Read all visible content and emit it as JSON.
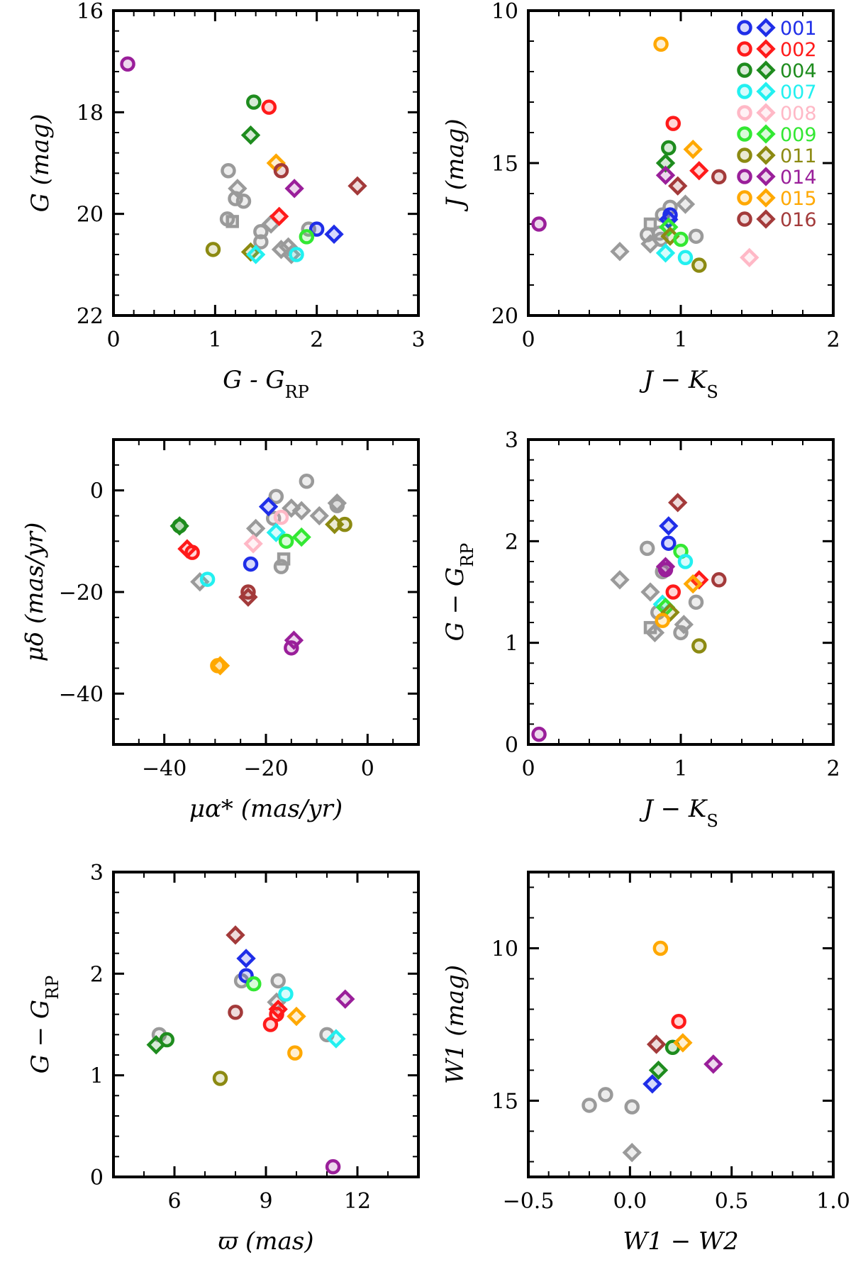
{
  "groups": [
    {
      "id": "001",
      "color": "#1f2ee8"
    },
    {
      "id": "002",
      "color": "#ff1a1a"
    },
    {
      "id": "004",
      "color": "#1e8c1e"
    },
    {
      "id": "007",
      "color": "#22f0f0"
    },
    {
      "id": "008",
      "color": "#ffb8c6"
    },
    {
      "id": "009",
      "color": "#33e833"
    },
    {
      "id": "011",
      "color": "#8c8a12"
    },
    {
      "id": "014",
      "color": "#9a1f9a"
    },
    {
      "id": "015",
      "color": "#ffa800"
    },
    {
      "id": "016",
      "color": "#a33a3a"
    }
  ],
  "field_color": "#9a9a9a",
  "legend": {
    "placement": "top-right",
    "labels": [
      "001",
      "002",
      "004",
      "007",
      "008",
      "009",
      "011",
      "014",
      "015",
      "016"
    ]
  },
  "chart_data": [
    {
      "type": "scatter",
      "xlabel": "G - G_RP",
      "ylabel": "G (mag)",
      "xlim": [
        0,
        3
      ],
      "ylim": [
        22,
        16
      ],
      "y_inverted": true,
      "xticks": [
        "0",
        "1",
        "2",
        "3"
      ],
      "yticks": [
        "16",
        "18",
        "20",
        "22"
      ],
      "points": [
        {
          "x": 0.14,
          "y": 17.05,
          "g": "014",
          "m": "o"
        },
        {
          "x": 1.38,
          "y": 17.8,
          "g": "004",
          "m": "o"
        },
        {
          "x": 1.53,
          "y": 17.9,
          "g": "002",
          "m": "o"
        },
        {
          "x": 1.35,
          "y": 18.45,
          "g": "004",
          "m": "d"
        },
        {
          "x": 1.6,
          "y": 19.0,
          "g": "015",
          "m": "d"
        },
        {
          "x": 1.65,
          "y": 19.15,
          "g": "016",
          "m": "o"
        },
        {
          "x": 1.78,
          "y": 19.5,
          "g": "014",
          "m": "d"
        },
        {
          "x": 2.4,
          "y": 19.45,
          "g": "016",
          "m": "d"
        },
        {
          "x": 1.63,
          "y": 20.05,
          "g": "002",
          "m": "d"
        },
        {
          "x": 2.0,
          "y": 20.3,
          "g": "001",
          "m": "o"
        },
        {
          "x": 2.17,
          "y": 20.4,
          "g": "001",
          "m": "d"
        },
        {
          "x": 1.9,
          "y": 20.45,
          "g": "009",
          "m": "o"
        },
        {
          "x": 0.98,
          "y": 20.7,
          "g": "011",
          "m": "o"
        },
        {
          "x": 1.35,
          "y": 20.75,
          "g": "011",
          "m": "d"
        },
        {
          "x": 1.4,
          "y": 20.8,
          "g": "007",
          "m": "d"
        },
        {
          "x": 1.8,
          "y": 20.8,
          "g": "007",
          "m": "o"
        },
        {
          "x": 1.13,
          "y": 19.15,
          "g": "field",
          "m": "o"
        },
        {
          "x": 1.22,
          "y": 19.5,
          "g": "field",
          "m": "d"
        },
        {
          "x": 1.2,
          "y": 19.7,
          "g": "field",
          "m": "o"
        },
        {
          "x": 1.28,
          "y": 19.75,
          "g": "field",
          "m": "o"
        },
        {
          "x": 1.12,
          "y": 20.1,
          "g": "field",
          "m": "o"
        },
        {
          "x": 1.17,
          "y": 20.15,
          "g": "field",
          "m": "s"
        },
        {
          "x": 1.45,
          "y": 20.35,
          "g": "field",
          "m": "o"
        },
        {
          "x": 1.55,
          "y": 20.2,
          "g": "field",
          "m": "d"
        },
        {
          "x": 1.45,
          "y": 20.55,
          "g": "field",
          "m": "o"
        },
        {
          "x": 1.65,
          "y": 20.7,
          "g": "field",
          "m": "d"
        },
        {
          "x": 1.72,
          "y": 20.65,
          "g": "field",
          "m": "d"
        },
        {
          "x": 1.75,
          "y": 20.8,
          "g": "field",
          "m": "d"
        },
        {
          "x": 1.92,
          "y": 20.3,
          "g": "field",
          "m": "o"
        }
      ]
    },
    {
      "type": "scatter",
      "xlabel": "J − K_S",
      "ylabel": "J (mag)",
      "xlim": [
        0,
        2
      ],
      "ylim": [
        20,
        10
      ],
      "y_inverted": true,
      "xticks": [
        "0",
        "1",
        "2"
      ],
      "yticks": [
        "10",
        "15",
        "20"
      ],
      "points": [
        {
          "x": 0.87,
          "y": 11.1,
          "g": "015",
          "m": "o"
        },
        {
          "x": 0.95,
          "y": 13.7,
          "g": "002",
          "m": "o"
        },
        {
          "x": 0.92,
          "y": 14.5,
          "g": "004",
          "m": "o"
        },
        {
          "x": 1.08,
          "y": 14.55,
          "g": "015",
          "m": "d"
        },
        {
          "x": 0.9,
          "y": 15.0,
          "g": "004",
          "m": "d"
        },
        {
          "x": 1.12,
          "y": 15.25,
          "g": "002",
          "m": "d"
        },
        {
          "x": 1.25,
          "y": 15.45,
          "g": "016",
          "m": "o"
        },
        {
          "x": 0.9,
          "y": 15.4,
          "g": "014",
          "m": "d"
        },
        {
          "x": 0.98,
          "y": 15.75,
          "g": "016",
          "m": "d"
        },
        {
          "x": 0.93,
          "y": 16.7,
          "g": "001",
          "m": "o"
        },
        {
          "x": 0.92,
          "y": 16.85,
          "g": "001",
          "m": "d"
        },
        {
          "x": 0.92,
          "y": 17.1,
          "g": "009",
          "m": "d"
        },
        {
          "x": 0.93,
          "y": 17.4,
          "g": "011",
          "m": "d"
        },
        {
          "x": 1.0,
          "y": 17.5,
          "g": "009",
          "m": "o"
        },
        {
          "x": 0.9,
          "y": 17.95,
          "g": "007",
          "m": "d"
        },
        {
          "x": 1.03,
          "y": 18.1,
          "g": "007",
          "m": "o"
        },
        {
          "x": 1.12,
          "y": 18.35,
          "g": "011",
          "m": "o"
        },
        {
          "x": 1.45,
          "y": 18.1,
          "g": "008",
          "m": "d"
        },
        {
          "x": 0.07,
          "y": 17.0,
          "g": "014",
          "m": "o"
        },
        {
          "x": 0.93,
          "y": 16.45,
          "g": "field",
          "m": "o"
        },
        {
          "x": 1.03,
          "y": 16.35,
          "g": "field",
          "m": "d"
        },
        {
          "x": 0.88,
          "y": 16.7,
          "g": "field",
          "m": "o"
        },
        {
          "x": 0.8,
          "y": 17.0,
          "g": "field",
          "m": "s"
        },
        {
          "x": 0.78,
          "y": 17.35,
          "g": "field",
          "m": "o"
        },
        {
          "x": 0.86,
          "y": 17.3,
          "g": "field",
          "m": "o"
        },
        {
          "x": 0.8,
          "y": 17.65,
          "g": "field",
          "m": "d"
        },
        {
          "x": 0.87,
          "y": 17.5,
          "g": "field",
          "m": "o"
        },
        {
          "x": 1.1,
          "y": 17.4,
          "g": "field",
          "m": "o"
        },
        {
          "x": 0.6,
          "y": 17.9,
          "g": "field",
          "m": "d"
        }
      ]
    },
    {
      "type": "scatter",
      "xlabel": "μα* (mas/yr)",
      "ylabel": "μδ (mas/yr)",
      "xlim": [
        -50,
        10
      ],
      "ylim": [
        -50,
        10
      ],
      "xticks": [
        "−40",
        "−20",
        "0"
      ],
      "yticks": [
        "−40",
        "−20",
        "0"
      ],
      "points": [
        {
          "x": -37,
          "y": -7,
          "g": "004",
          "m": "o"
        },
        {
          "x": -37,
          "y": -7,
          "g": "004",
          "m": "d"
        },
        {
          "x": -35.5,
          "y": -11.5,
          "g": "002",
          "m": "d"
        },
        {
          "x": -34.5,
          "y": -12.2,
          "g": "002",
          "m": "o"
        },
        {
          "x": -31.5,
          "y": -17.5,
          "g": "007",
          "m": "o"
        },
        {
          "x": -23.5,
          "y": -20,
          "g": "016",
          "m": "o"
        },
        {
          "x": -23.5,
          "y": -21,
          "g": "016",
          "m": "d"
        },
        {
          "x": -29.5,
          "y": -34.5,
          "g": "015",
          "m": "o"
        },
        {
          "x": -29,
          "y": -34.5,
          "g": "015",
          "m": "d"
        },
        {
          "x": -15,
          "y": -31,
          "g": "014",
          "m": "o"
        },
        {
          "x": -14.5,
          "y": -29.5,
          "g": "014",
          "m": "d"
        },
        {
          "x": -19.5,
          "y": -3.2,
          "g": "001",
          "m": "d"
        },
        {
          "x": -23,
          "y": -14.5,
          "g": "001",
          "m": "o"
        },
        {
          "x": -18,
          "y": -8.3,
          "g": "007",
          "m": "d"
        },
        {
          "x": -22.5,
          "y": -10.5,
          "g": "008",
          "m": "d"
        },
        {
          "x": -17,
          "y": -5.3,
          "g": "008",
          "m": "o"
        },
        {
          "x": -16,
          "y": -10,
          "g": "009",
          "m": "o"
        },
        {
          "x": -13,
          "y": -9.2,
          "g": "009",
          "m": "d"
        },
        {
          "x": -6.5,
          "y": -6.7,
          "g": "011",
          "m": "d"
        },
        {
          "x": -4.5,
          "y": -6.7,
          "g": "011",
          "m": "o"
        },
        {
          "x": -33,
          "y": -18,
          "g": "field",
          "m": "d"
        },
        {
          "x": -18.5,
          "y": -5.5,
          "g": "field",
          "m": "o"
        },
        {
          "x": -18,
          "y": -1.2,
          "g": "field",
          "m": "o"
        },
        {
          "x": -22,
          "y": -7.5,
          "g": "field",
          "m": "d"
        },
        {
          "x": -15,
          "y": -3.5,
          "g": "field",
          "m": "d"
        },
        {
          "x": -13,
          "y": -4,
          "g": "field",
          "m": "d"
        },
        {
          "x": -12,
          "y": 1.8,
          "g": "field",
          "m": "o"
        },
        {
          "x": -9.5,
          "y": -5,
          "g": "field",
          "m": "d"
        },
        {
          "x": -6,
          "y": -2.5,
          "g": "field",
          "m": "d"
        },
        {
          "x": -6,
          "y": -3,
          "g": "field",
          "m": "o"
        },
        {
          "x": -17,
          "y": -15,
          "g": "field",
          "m": "o"
        },
        {
          "x": -16.5,
          "y": -13.5,
          "g": "field",
          "m": "s"
        }
      ]
    },
    {
      "type": "scatter",
      "xlabel": "J − K_S",
      "ylabel": "G − G_RP",
      "xlim": [
        0,
        2
      ],
      "ylim": [
        0,
        3
      ],
      "xticks": [
        "0",
        "1",
        "2"
      ],
      "yticks": [
        "0",
        "1",
        "2",
        "3"
      ],
      "points": [
        {
          "x": 0.07,
          "y": 0.1,
          "g": "014",
          "m": "o"
        },
        {
          "x": 0.98,
          "y": 2.38,
          "g": "016",
          "m": "d"
        },
        {
          "x": 0.92,
          "y": 2.15,
          "g": "001",
          "m": "d"
        },
        {
          "x": 0.92,
          "y": 1.98,
          "g": "001",
          "m": "o"
        },
        {
          "x": 1.0,
          "y": 1.9,
          "g": "009",
          "m": "o"
        },
        {
          "x": 1.03,
          "y": 1.8,
          "g": "007",
          "m": "o"
        },
        {
          "x": 0.9,
          "y": 1.75,
          "g": "014",
          "m": "d"
        },
        {
          "x": 0.9,
          "y": 1.72,
          "g": "014",
          "m": "o"
        },
        {
          "x": 1.12,
          "y": 1.62,
          "g": "002",
          "m": "d"
        },
        {
          "x": 1.08,
          "y": 1.58,
          "g": "015",
          "m": "d"
        },
        {
          "x": 1.25,
          "y": 1.62,
          "g": "016",
          "m": "o"
        },
        {
          "x": 0.95,
          "y": 1.5,
          "g": "002",
          "m": "o"
        },
        {
          "x": 0.88,
          "y": 1.38,
          "g": "007",
          "m": "d"
        },
        {
          "x": 0.9,
          "y": 1.35,
          "g": "009",
          "m": "d"
        },
        {
          "x": 0.93,
          "y": 1.3,
          "g": "011",
          "m": "d"
        },
        {
          "x": 0.88,
          "y": 1.22,
          "g": "015",
          "m": "o"
        },
        {
          "x": 1.12,
          "y": 0.97,
          "g": "011",
          "m": "o"
        },
        {
          "x": 0.78,
          "y": 1.93,
          "g": "field",
          "m": "o"
        },
        {
          "x": 0.6,
          "y": 1.62,
          "g": "field",
          "m": "d"
        },
        {
          "x": 0.8,
          "y": 1.5,
          "g": "field",
          "m": "d"
        },
        {
          "x": 0.88,
          "y": 1.7,
          "g": "field",
          "m": "o"
        },
        {
          "x": 1.1,
          "y": 1.4,
          "g": "field",
          "m": "o"
        },
        {
          "x": 0.85,
          "y": 1.3,
          "g": "field",
          "m": "o"
        },
        {
          "x": 1.02,
          "y": 1.18,
          "g": "field",
          "m": "d"
        },
        {
          "x": 1.0,
          "y": 1.1,
          "g": "field",
          "m": "o"
        },
        {
          "x": 0.8,
          "y": 1.15,
          "g": "field",
          "m": "s"
        },
        {
          "x": 0.83,
          "y": 1.1,
          "g": "field",
          "m": "d"
        }
      ]
    },
    {
      "type": "scatter",
      "xlabel": "ϖ (mas)",
      "ylabel": "G − G_RP",
      "xlim": [
        4,
        14
      ],
      "ylim": [
        0,
        3
      ],
      "xticks": [
        "6",
        "9",
        "12"
      ],
      "yticks": [
        "0",
        "1",
        "2",
        "3"
      ],
      "points": [
        {
          "x": 8.0,
          "y": 2.38,
          "g": "016",
          "m": "d"
        },
        {
          "x": 8.35,
          "y": 2.15,
          "g": "001",
          "m": "d"
        },
        {
          "x": 8.35,
          "y": 1.98,
          "g": "001",
          "m": "o"
        },
        {
          "x": 8.6,
          "y": 1.9,
          "g": "009",
          "m": "o"
        },
        {
          "x": 9.65,
          "y": 1.8,
          "g": "007",
          "m": "o"
        },
        {
          "x": 11.6,
          "y": 1.75,
          "g": "014",
          "m": "d"
        },
        {
          "x": 9.4,
          "y": 1.65,
          "g": "002",
          "m": "d"
        },
        {
          "x": 9.35,
          "y": 1.6,
          "g": "002",
          "m": "o"
        },
        {
          "x": 10.0,
          "y": 1.58,
          "g": "015",
          "m": "d"
        },
        {
          "x": 9.15,
          "y": 1.5,
          "g": "002",
          "m": "o"
        },
        {
          "x": 8.0,
          "y": 1.62,
          "g": "016",
          "m": "o"
        },
        {
          "x": 11.3,
          "y": 1.36,
          "g": "007",
          "m": "d"
        },
        {
          "x": 9.95,
          "y": 1.22,
          "g": "015",
          "m": "o"
        },
        {
          "x": 7.5,
          "y": 0.97,
          "g": "011",
          "m": "o"
        },
        {
          "x": 11.2,
          "y": 0.1,
          "g": "014",
          "m": "o"
        },
        {
          "x": 5.4,
          "y": 1.3,
          "g": "004",
          "m": "d"
        },
        {
          "x": 5.75,
          "y": 1.35,
          "g": "004",
          "m": "o"
        },
        {
          "x": 5.5,
          "y": 1.4,
          "g": "field",
          "m": "o"
        },
        {
          "x": 8.2,
          "y": 1.93,
          "g": "field",
          "m": "o"
        },
        {
          "x": 9.4,
          "y": 1.93,
          "g": "field",
          "m": "o"
        },
        {
          "x": 9.35,
          "y": 1.72,
          "g": "field",
          "m": "d"
        },
        {
          "x": 11.0,
          "y": 1.4,
          "g": "field",
          "m": "o"
        }
      ]
    },
    {
      "type": "scatter",
      "xlabel": "W1 − W2",
      "ylabel": "W1 (mag)",
      "xlim": [
        -0.5,
        1.0
      ],
      "ylim": [
        17.5,
        7.5
      ],
      "y_inverted": true,
      "xticks": [
        "−0.5",
        "0.0",
        "0.5",
        "1.0"
      ],
      "yticks": [
        "10",
        "15"
      ],
      "points": [
        {
          "x": 0.15,
          "y": 10.0,
          "g": "015",
          "m": "o"
        },
        {
          "x": 0.24,
          "y": 12.4,
          "g": "002",
          "m": "o"
        },
        {
          "x": 0.21,
          "y": 13.25,
          "g": "004",
          "m": "o"
        },
        {
          "x": 0.26,
          "y": 13.1,
          "g": "015",
          "m": "d"
        },
        {
          "x": 0.13,
          "y": 13.15,
          "g": "016",
          "m": "d"
        },
        {
          "x": 0.41,
          "y": 13.8,
          "g": "014",
          "m": "d"
        },
        {
          "x": 0.14,
          "y": 14.0,
          "g": "004",
          "m": "d"
        },
        {
          "x": 0.11,
          "y": 14.45,
          "g": "001",
          "m": "d"
        },
        {
          "x": -0.2,
          "y": 15.15,
          "g": "field",
          "m": "o"
        },
        {
          "x": -0.12,
          "y": 14.8,
          "g": "field",
          "m": "o"
        },
        {
          "x": 0.01,
          "y": 15.2,
          "g": "field",
          "m": "o"
        },
        {
          "x": 0.01,
          "y": 16.7,
          "g": "field",
          "m": "d"
        }
      ]
    }
  ]
}
